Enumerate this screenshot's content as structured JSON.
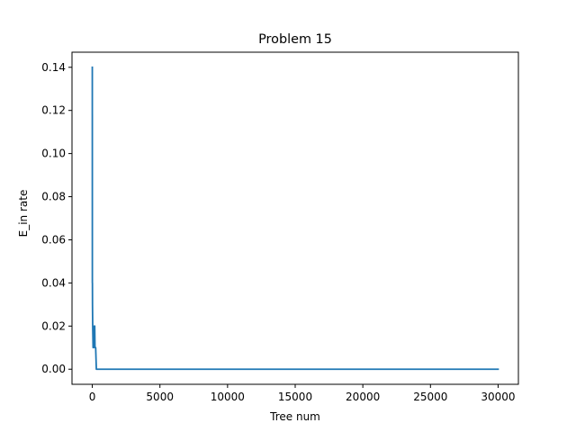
{
  "chart_data": {
    "type": "line",
    "title": "Problem 15",
    "xlabel": "Tree num",
    "ylabel": "E_in rate",
    "xlim": [
      -1500,
      31500
    ],
    "ylim": [
      -0.007,
      0.147
    ],
    "xticks": [
      0,
      5000,
      10000,
      15000,
      20000,
      25000,
      30000
    ],
    "xtick_labels": [
      "0",
      "5000",
      "10000",
      "15000",
      "20000",
      "25000",
      "30000"
    ],
    "yticks": [
      0.0,
      0.02,
      0.04,
      0.06,
      0.08,
      0.1,
      0.12,
      0.14
    ],
    "ytick_labels": [
      "0.00",
      "0.02",
      "0.04",
      "0.06",
      "0.08",
      "0.10",
      "0.12",
      "0.14"
    ],
    "grid": false,
    "series": [
      {
        "color": "#1f77b4",
        "x": [
          1,
          5,
          10,
          15,
          30,
          60,
          100,
          150,
          180,
          200,
          250,
          300,
          350,
          500,
          1000,
          5000,
          10000,
          15000,
          20000,
          25000,
          30000
        ],
        "y": [
          0.14,
          0.04,
          0.04,
          0.03,
          0.02,
          0.01,
          0.01,
          0.02,
          0.02,
          0.01,
          0.01,
          0.0,
          0.0,
          0.0,
          0.0,
          0.0,
          0.0,
          0.0,
          0.0,
          0.0,
          0.0
        ]
      }
    ]
  }
}
